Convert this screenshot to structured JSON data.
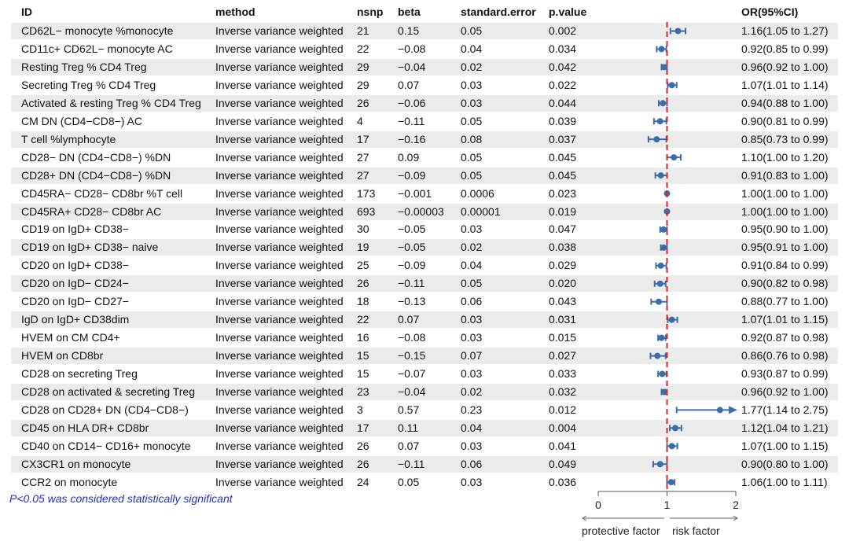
{
  "headers": {
    "id": "ID",
    "method": "method",
    "nsnp": "nsnp",
    "beta": "beta",
    "se": "standard.error",
    "p": "p.value",
    "or": "OR(95%CI)"
  },
  "footnote": "P<0.05 was considered statistically significant",
  "axis": {
    "ticks": [
      "0",
      "1",
      "2"
    ],
    "left_label": "protective factor",
    "right_label": "risk factor"
  },
  "colors": {
    "point": "#3b6ea8",
    "reference_line": "#e02020",
    "stripe": "#ebebeb",
    "footnote": "#1f2fbf"
  },
  "chart_data": {
    "type": "forest",
    "x_reference": 1,
    "xlim": [
      0,
      2
    ],
    "rows": [
      {
        "id": "CD62L− monocyte %monocyte",
        "method": "Inverse variance weighted",
        "nsnp": "21",
        "beta": "0.15",
        "se": "0.05",
        "p": "0.002",
        "or_text": "1.16(1.05 to 1.27)",
        "or": 1.16,
        "lo": 1.05,
        "hi": 1.27
      },
      {
        "id": "CD11c+ CD62L− monocyte AC",
        "method": "Inverse variance weighted",
        "nsnp": "22",
        "beta": "−0.08",
        "se": "0.04",
        "p": "0.034",
        "or_text": "0.92(0.85 to 0.99)",
        "or": 0.92,
        "lo": 0.85,
        "hi": 0.99
      },
      {
        "id": "Resting Treg % CD4 Treg",
        "method": "Inverse variance weighted",
        "nsnp": "29",
        "beta": "−0.04",
        "se": "0.02",
        "p": "0.042",
        "or_text": "0.96(0.92 to 1.00)",
        "or": 0.96,
        "lo": 0.92,
        "hi": 1.0
      },
      {
        "id": "Secreting Treg % CD4 Treg",
        "method": "Inverse variance weighted",
        "nsnp": "29",
        "beta": "0.07",
        "se": "0.03",
        "p": "0.022",
        "or_text": "1.07(1.01 to 1.14)",
        "or": 1.07,
        "lo": 1.01,
        "hi": 1.14
      },
      {
        "id": "Activated & resting Treg % CD4 Treg",
        "method": "Inverse variance weighted",
        "nsnp": "26",
        "beta": "−0.06",
        "se": "0.03",
        "p": "0.044",
        "or_text": "0.94(0.88 to 1.00)",
        "or": 0.94,
        "lo": 0.88,
        "hi": 1.0
      },
      {
        "id": "CM DN (CD4−CD8−) AC",
        "method": "Inverse variance weighted",
        "nsnp": "4",
        "beta": "−0.11",
        "se": "0.05",
        "p": "0.039",
        "or_text": "0.90(0.81 to 0.99)",
        "or": 0.9,
        "lo": 0.81,
        "hi": 0.99
      },
      {
        "id": "T cell %lymphocyte",
        "method": "Inverse variance weighted",
        "nsnp": "17",
        "beta": "−0.16",
        "se": "0.08",
        "p": "0.037",
        "or_text": "0.85(0.73 to 0.99)",
        "or": 0.85,
        "lo": 0.73,
        "hi": 0.99
      },
      {
        "id": "CD28− DN (CD4−CD8−) %DN",
        "method": "Inverse variance weighted",
        "nsnp": "27",
        "beta": "0.09",
        "se": "0.05",
        "p": "0.045",
        "or_text": "1.10(1.00 to 1.20)",
        "or": 1.1,
        "lo": 1.0,
        "hi": 1.2
      },
      {
        "id": "CD28+ DN (CD4−CD8−) %DN",
        "method": "Inverse variance weighted",
        "nsnp": "27",
        "beta": "−0.09",
        "se": "0.05",
        "p": "0.045",
        "or_text": "0.91(0.83 to 1.00)",
        "or": 0.91,
        "lo": 0.83,
        "hi": 1.0
      },
      {
        "id": "CD45RA− CD28− CD8br %T cell",
        "method": "Inverse variance weighted",
        "nsnp": "173",
        "beta": "−0.001",
        "se": "0.0006",
        "p": "0.023",
        "or_text": "1.00(1.00 to 1.00)",
        "or": 1.0,
        "lo": 1.0,
        "hi": 1.0
      },
      {
        "id": "CD45RA+ CD28− CD8br AC",
        "method": "Inverse variance weighted",
        "nsnp": "693",
        "beta": "−0.00003",
        "se": "0.00001",
        "p": "0.019",
        "or_text": "1.00(1.00 to 1.00)",
        "or": 1.0,
        "lo": 1.0,
        "hi": 1.0
      },
      {
        "id": "CD19 on IgD+ CD38−",
        "method": "Inverse variance weighted",
        "nsnp": "30",
        "beta": "−0.05",
        "se": "0.03",
        "p": "0.047",
        "or_text": "0.95(0.90 to 1.00)",
        "or": 0.95,
        "lo": 0.9,
        "hi": 1.0
      },
      {
        "id": "CD19 on IgD+ CD38− naive",
        "method": "Inverse variance weighted",
        "nsnp": "19",
        "beta": "−0.05",
        "se": "0.02",
        "p": "0.038",
        "or_text": "0.95(0.91 to 1.00)",
        "or": 0.95,
        "lo": 0.91,
        "hi": 1.0
      },
      {
        "id": "CD20 on IgD+ CD38−",
        "method": "Inverse variance weighted",
        "nsnp": "25",
        "beta": "−0.09",
        "se": "0.04",
        "p": "0.029",
        "or_text": "0.91(0.84 to 0.99)",
        "or": 0.91,
        "lo": 0.84,
        "hi": 0.99
      },
      {
        "id": "CD20 on IgD− CD24−",
        "method": "Inverse variance weighted",
        "nsnp": "26",
        "beta": "−0.11",
        "se": "0.05",
        "p": "0.020",
        "or_text": "0.90(0.82 to 0.98)",
        "or": 0.9,
        "lo": 0.82,
        "hi": 0.98
      },
      {
        "id": "CD20 on IgD− CD27−",
        "method": "Inverse variance weighted",
        "nsnp": "18",
        "beta": "−0.13",
        "se": "0.06",
        "p": "0.043",
        "or_text": "0.88(0.77 to 1.00)",
        "or": 0.88,
        "lo": 0.77,
        "hi": 1.0
      },
      {
        "id": "IgD on IgD+ CD38dim",
        "method": "Inverse variance weighted",
        "nsnp": "22",
        "beta": "0.07",
        "se": "0.03",
        "p": "0.031",
        "or_text": "1.07(1.01 to 1.15)",
        "or": 1.07,
        "lo": 1.01,
        "hi": 1.15
      },
      {
        "id": "HVEM on CM CD4+",
        "method": "Inverse variance weighted",
        "nsnp": "16",
        "beta": "−0.08",
        "se": "0.03",
        "p": "0.015",
        "or_text": "0.92(0.87 to 0.98)",
        "or": 0.92,
        "lo": 0.87,
        "hi": 0.98
      },
      {
        "id": "HVEM on CD8br",
        "method": "Inverse variance weighted",
        "nsnp": "15",
        "beta": "−0.15",
        "se": "0.07",
        "p": "0.027",
        "or_text": "0.86(0.76 to 0.98)",
        "or": 0.86,
        "lo": 0.76,
        "hi": 0.98
      },
      {
        "id": "CD28 on secreting Treg",
        "method": "Inverse variance weighted",
        "nsnp": "15",
        "beta": "−0.07",
        "se": "0.03",
        "p": "0.033",
        "or_text": "0.93(0.87 to 0.99)",
        "or": 0.93,
        "lo": 0.87,
        "hi": 0.99
      },
      {
        "id": "CD28 on activated & secreting Treg",
        "method": "Inverse variance weighted",
        "nsnp": "23",
        "beta": "−0.04",
        "se": "0.02",
        "p": "0.032",
        "or_text": "0.96(0.92 to 1.00)",
        "or": 0.96,
        "lo": 0.92,
        "hi": 1.0
      },
      {
        "id": "CD28 on CD28+ DN (CD4−CD8−)",
        "method": "Inverse variance weighted",
        "nsnp": "3",
        "beta": "0.57",
        "se": "0.23",
        "p": "0.012",
        "or_text": "1.77(1.14 to 2.75)",
        "or": 1.77,
        "lo": 1.14,
        "hi": 2.75
      },
      {
        "id": "CD45 on HLA DR+ CD8br",
        "method": "Inverse variance weighted",
        "nsnp": "17",
        "beta": "0.11",
        "se": "0.04",
        "p": "0.004",
        "or_text": "1.12(1.04 to 1.21)",
        "or": 1.12,
        "lo": 1.04,
        "hi": 1.21
      },
      {
        "id": "CD40 on CD14− CD16+ monocyte",
        "method": "Inverse variance weighted",
        "nsnp": "26",
        "beta": "0.07",
        "se": "0.03",
        "p": "0.041",
        "or_text": "1.07(1.00 to 1.15)",
        "or": 1.07,
        "lo": 1.0,
        "hi": 1.15
      },
      {
        "id": "CX3CR1 on monocyte",
        "method": "Inverse variance weighted",
        "nsnp": "26",
        "beta": "−0.11",
        "se": "0.06",
        "p": "0.049",
        "or_text": "0.90(0.80 to 1.00)",
        "or": 0.9,
        "lo": 0.8,
        "hi": 1.0
      },
      {
        "id": "CCR2 on monocyte",
        "method": "Inverse variance weighted",
        "nsnp": "24",
        "beta": "0.05",
        "se": "0.03",
        "p": "0.036",
        "or_text": "1.06(1.00 to 1.11)",
        "or": 1.06,
        "lo": 1.0,
        "hi": 1.11
      }
    ]
  }
}
